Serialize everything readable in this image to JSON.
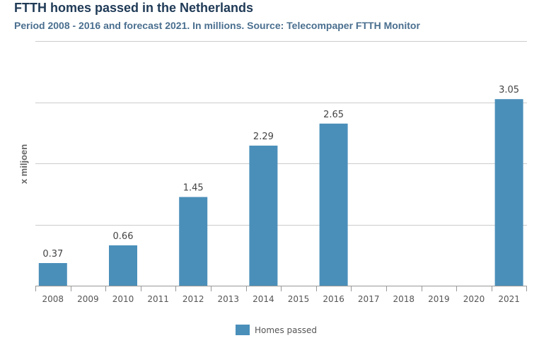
{
  "colors": {
    "bar": "#4a8fba",
    "grid": "#cccccc",
    "axis": "#999999",
    "title": "#1f3a56",
    "subtitle": "#4a6f8f"
  },
  "chart_data": {
    "type": "bar",
    "title": "FTTH homes passed in the Netherlands",
    "subtitle": "Period 2008 - 2016 and forecast 2021. In millions. Source: Telecompaper FTTH Monitor",
    "xlabel": "",
    "ylabel": "x miljoen",
    "categories": [
      "2008",
      "2009",
      "2010",
      "2011",
      "2012",
      "2013",
      "2014",
      "2015",
      "2016",
      "2017",
      "2018",
      "2019",
      "2020",
      "2021"
    ],
    "series": [
      {
        "name": "Homes passed",
        "values": [
          0.37,
          null,
          0.66,
          null,
          1.45,
          null,
          2.29,
          null,
          2.65,
          null,
          null,
          null,
          null,
          3.05
        ]
      }
    ],
    "data_labels": [
      "0.37",
      "",
      "0.66",
      "",
      "1.45",
      "",
      "2.29",
      "",
      "2.65",
      "",
      "",
      "",
      "",
      "3.05"
    ],
    "ylim": [
      0,
      4
    ],
    "yticks": [
      0,
      1,
      2,
      3,
      4
    ],
    "grid": true,
    "legend": "bottom-center"
  }
}
